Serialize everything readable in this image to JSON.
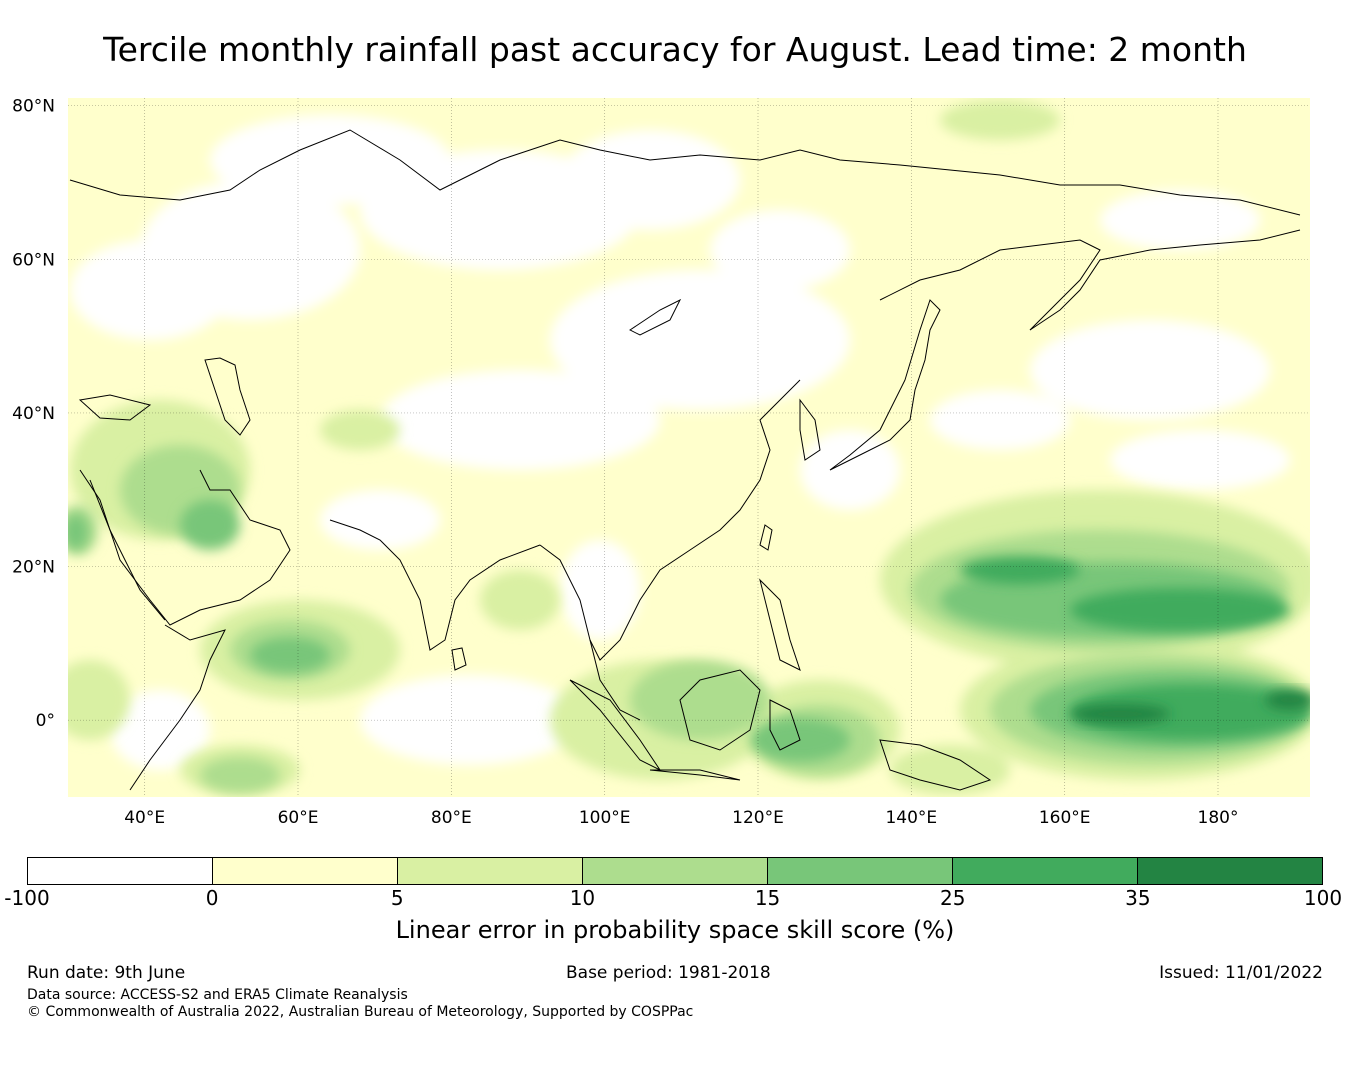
{
  "title": "Tercile monthly rainfall past accuracy for August. Lead time: 2 month",
  "map": {
    "lat_labels": [
      "80°N",
      "60°N",
      "40°N",
      "20°N",
      "0°"
    ],
    "lon_labels": [
      "40°E",
      "60°E",
      "80°E",
      "100°E",
      "120°E",
      "140°E",
      "160°E",
      "180°"
    ],
    "lat_values": [
      80,
      60,
      40,
      20,
      0
    ],
    "lon_values": [
      40,
      60,
      80,
      100,
      120,
      140,
      160,
      180
    ],
    "extent": {
      "lon_min": 30,
      "lon_max": 192,
      "lat_min": -10,
      "lat_max": 81
    }
  },
  "colorbar": {
    "ticks": [
      "-100",
      "0",
      "5",
      "10",
      "15",
      "25",
      "35",
      "100"
    ],
    "colors": [
      "#ffffff",
      "#ffffcc",
      "#d9f0a3",
      "#addd8e",
      "#78c679",
      "#41ab5d",
      "#238443"
    ],
    "label": "Linear error in probability space skill score (%)"
  },
  "footer": {
    "run_date": "Run date: 9th June",
    "base_period": "Base period: 1981-2018",
    "issued": "Issued: 11/01/2022",
    "data_source": "Data source: ACCESS-S2 and ERA5 Climate Reanalysis",
    "copyright": "© Commonwealth of Australia 2022, Australian Bureau of Meteorology, Supported by COSPPac"
  }
}
